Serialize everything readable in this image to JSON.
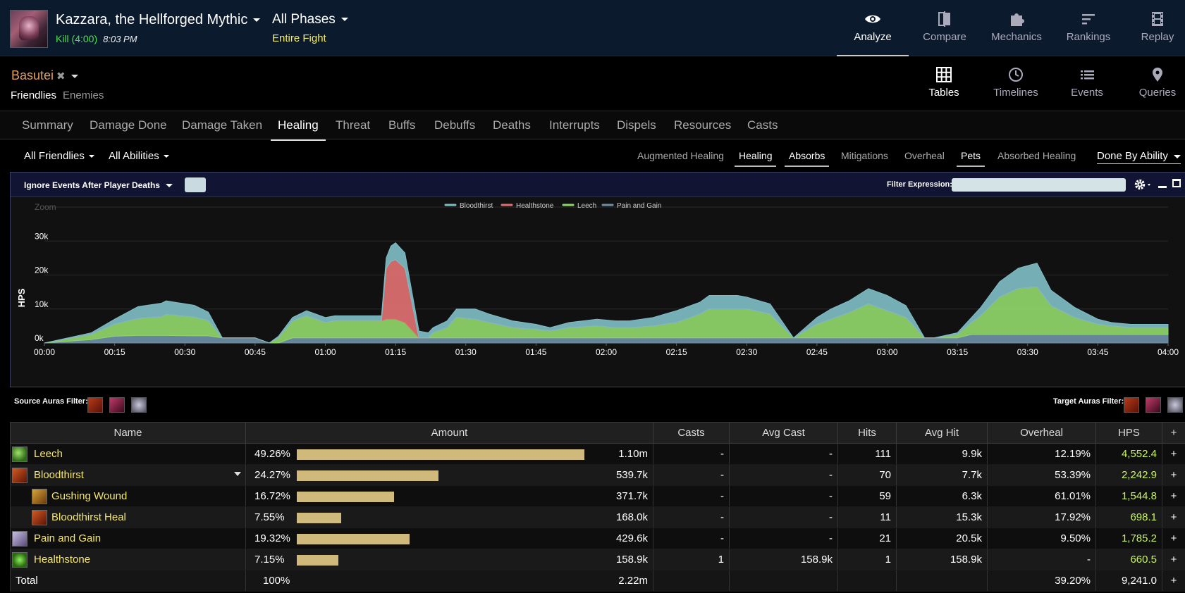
{
  "header": {
    "encounter": "Kazzara, the Hellforged Mythic",
    "kill_status": "Kill (4:00)",
    "kill_time": "8:03 PM",
    "phase": "All Phases",
    "phase_sub": "Entire Fight",
    "nav": [
      {
        "label": "Analyze",
        "icon": "eye-icon",
        "active": true
      },
      {
        "label": "Compare",
        "icon": "compare-icon"
      },
      {
        "label": "Mechanics",
        "icon": "puzzle-icon"
      },
      {
        "label": "Rankings",
        "icon": "rankings-icon"
      },
      {
        "label": "Replay",
        "icon": "film-icon"
      }
    ]
  },
  "player": {
    "name": "Basutei",
    "friendlies": "Friendlies",
    "enemies": "Enemies",
    "views": [
      {
        "label": "Tables",
        "icon": "grid-icon",
        "active": true
      },
      {
        "label": "Timelines",
        "icon": "clock-icon"
      },
      {
        "label": "Events",
        "icon": "list-icon"
      },
      {
        "label": "Queries",
        "icon": "map-pin-icon"
      }
    ]
  },
  "tabs": [
    "Summary",
    "Damage Done",
    "Damage Taken",
    "Healing",
    "Threat",
    "Buffs",
    "Debuffs",
    "Deaths",
    "Interrupts",
    "Dispels",
    "Resources",
    "Casts"
  ],
  "active_tab": "Healing",
  "filters": {
    "friendlies": "All Friendlies",
    "abilities": "All Abilities",
    "subtabs": [
      {
        "label": "Augmented Healing",
        "on": false
      },
      {
        "label": "Healing",
        "on": true
      },
      {
        "label": "Absorbs",
        "on": true
      },
      {
        "label": "Mitigations",
        "on": false
      },
      {
        "label": "Overheal",
        "on": false
      },
      {
        "label": "Pets",
        "on": true
      },
      {
        "label": "Absorbed Healing",
        "on": false
      }
    ],
    "done_by": "Done By Ability"
  },
  "graph": {
    "ignore_events": "Ignore Events After Player Deaths",
    "filter_label": "Filter Expression:",
    "zoom_label": "Zoom"
  },
  "chart_data": {
    "type": "area",
    "stacked": true,
    "ylabel": "HPS",
    "y_ticks": [
      "0k",
      "10k",
      "20k",
      "30k"
    ],
    "ylim": [
      0,
      40000
    ],
    "x_ticks": [
      "00:00",
      "00:15",
      "00:30",
      "00:45",
      "01:00",
      "01:15",
      "01:30",
      "01:45",
      "02:00",
      "02:15",
      "02:30",
      "02:45",
      "03:00",
      "03:15",
      "03:30",
      "03:45",
      "04:00"
    ],
    "x": [
      0,
      10,
      15,
      20,
      25,
      26,
      32,
      35,
      38,
      45,
      48,
      50,
      53,
      56,
      60,
      62,
      66,
      70,
      72,
      73,
      74,
      75,
      77,
      80,
      82,
      83,
      86,
      88,
      92,
      95,
      100,
      105,
      108,
      112,
      118,
      122,
      125,
      130,
      135,
      140,
      142,
      148,
      150,
      155,
      160,
      165,
      168,
      172,
      176,
      180,
      184,
      188,
      190,
      195,
      198,
      200,
      204,
      208,
      212,
      215,
      220,
      225,
      228,
      232,
      234,
      237,
      240
    ],
    "series": [
      {
        "name": "Pain and Gain",
        "color": "#6f8fa6",
        "values": [
          0,
          1000,
          2000,
          2200,
          2200,
          2200,
          2100,
          2100,
          1500,
          1500,
          0,
          0,
          1500,
          1500,
          1500,
          1500,
          1500,
          1500,
          1500,
          1500,
          1500,
          1500,
          1500,
          1500,
          1500,
          1500,
          1500,
          1500,
          1500,
          1500,
          1500,
          1500,
          1500,
          1500,
          1500,
          1500,
          1500,
          1500,
          1500,
          1500,
          1500,
          1500,
          1500,
          1500,
          1500,
          1500,
          1500,
          1500,
          1500,
          1500,
          1500,
          1500,
          1500,
          1500,
          2500,
          2500,
          2500,
          2500,
          2500,
          2500,
          2500,
          2500,
          2500,
          2500,
          2500,
          2500,
          2500
        ]
      },
      {
        "name": "Leech",
        "color": "#8fd66a",
        "values": [
          0,
          1500,
          3500,
          5000,
          5500,
          6200,
          5500,
          4500,
          0,
          0,
          0,
          1500,
          5000,
          6500,
          4500,
          5000,
          5000,
          5000,
          5000,
          5500,
          5500,
          5500,
          4500,
          0,
          0,
          1500,
          3000,
          6000,
          5500,
          4500,
          3000,
          2500,
          2000,
          3000,
          3500,
          3000,
          3000,
          3500,
          4500,
          7000,
          8500,
          8500,
          8500,
          7000,
          0,
          4000,
          5500,
          7500,
          10000,
          8000,
          6000,
          0,
          0,
          1000,
          3500,
          5500,
          11000,
          13500,
          14000,
          8500,
          5000,
          3000,
          2500,
          2000,
          2000,
          2000,
          2000
        ]
      },
      {
        "name": "Healthstone",
        "color": "#e07070",
        "values": [
          0,
          0,
          0,
          0,
          0,
          0,
          0,
          0,
          0,
          0,
          0,
          0,
          0,
          0,
          0,
          0,
          0,
          0,
          0,
          15000,
          17000,
          17500,
          16000,
          0,
          0,
          0,
          0,
          0,
          0,
          0,
          0,
          0,
          0,
          0,
          0,
          0,
          0,
          0,
          0,
          0,
          0,
          0,
          0,
          0,
          0,
          0,
          0,
          0,
          0,
          0,
          0,
          0,
          0,
          0,
          0,
          0,
          0,
          0,
          0,
          0,
          0,
          0,
          0,
          0,
          0,
          0,
          0
        ]
      },
      {
        "name": "Bloodthirst",
        "color": "#7fbcc4",
        "values": [
          0,
          500,
          1500,
          3500,
          4000,
          4000,
          3500,
          2500,
          0,
          0,
          0,
          500,
          1000,
          1500,
          1500,
          1500,
          1500,
          1500,
          1500,
          3000,
          4500,
          5000,
          4500,
          2000,
          1500,
          1500,
          2000,
          2500,
          3000,
          2500,
          2000,
          1500,
          1000,
          1500,
          2000,
          2000,
          2000,
          2500,
          3500,
          3500,
          4000,
          4000,
          3500,
          3000,
          0,
          2000,
          3000,
          3500,
          4500,
          4500,
          3500,
          0,
          0,
          500,
          1500,
          2500,
          4500,
          6000,
          7000,
          4500,
          3000,
          1500,
          1000,
          1000,
          1000,
          1000,
          1000
        ]
      }
    ],
    "legend": [
      "Bloodthirst",
      "Healthstone",
      "Leech",
      "Pain and Gain"
    ],
    "legend_position": "top-center"
  },
  "auras": {
    "source_label": "Source Auras Filter:",
    "target_label": "Target Auras Filter:"
  },
  "table": {
    "headers": [
      "Name",
      "Amount",
      "Casts",
      "Avg Cast",
      "Hits",
      "Avg Hit",
      "Overheal",
      "HPS",
      "+"
    ],
    "rows": [
      {
        "name": "Leech",
        "icon": "leech-icon",
        "indent": 0,
        "pct": "49.26%",
        "frac": 0.4926,
        "amount": "1.10m",
        "casts": "-",
        "avg_cast": "-",
        "hits": "111",
        "avg_hit": "9.9k",
        "overheal": "12.19%",
        "hps": "4,552.4"
      },
      {
        "name": "Bloodthirst",
        "icon": "bloodthirst-icon",
        "indent": 0,
        "pct": "24.27%",
        "frac": 0.2427,
        "amount": "539.7k",
        "casts": "-",
        "avg_cast": "-",
        "hits": "70",
        "avg_hit": "7.7k",
        "overheal": "53.39%",
        "hps": "2,242.9",
        "expand": true
      },
      {
        "name": "Gushing Wound",
        "icon": "gushing-wound-icon",
        "indent": 1,
        "pct": "16.72%",
        "frac": 0.1672,
        "amount": "371.7k",
        "casts": "-",
        "avg_cast": "-",
        "hits": "59",
        "avg_hit": "6.3k",
        "overheal": "61.01%",
        "hps": "1,544.8"
      },
      {
        "name": "Bloodthirst Heal",
        "icon": "bloodthirst-heal-icon",
        "indent": 1,
        "pct": "7.55%",
        "frac": 0.0755,
        "amount": "168.0k",
        "casts": "-",
        "avg_cast": "-",
        "hits": "11",
        "avg_hit": "15.3k",
        "overheal": "17.92%",
        "hps": "698.1"
      },
      {
        "name": "Pain and Gain",
        "icon": "pain-and-gain-icon",
        "indent": 0,
        "pct": "19.32%",
        "frac": 0.1932,
        "amount": "429.6k",
        "casts": "-",
        "avg_cast": "-",
        "hits": "21",
        "avg_hit": "20.5k",
        "overheal": "9.50%",
        "hps": "1,785.2"
      },
      {
        "name": "Healthstone",
        "icon": "healthstone-icon",
        "indent": 0,
        "pct": "7.15%",
        "frac": 0.0715,
        "amount": "158.9k",
        "casts": "1",
        "avg_cast": "158.9k",
        "hits": "1",
        "avg_hit": "158.9k",
        "overheal": "-",
        "hps": "660.5"
      }
    ],
    "total": {
      "name": "Total",
      "pct": "100%",
      "amount": "2.22m",
      "overheal": "39.20%",
      "hps": "9,241.0"
    },
    "plus": "+"
  }
}
